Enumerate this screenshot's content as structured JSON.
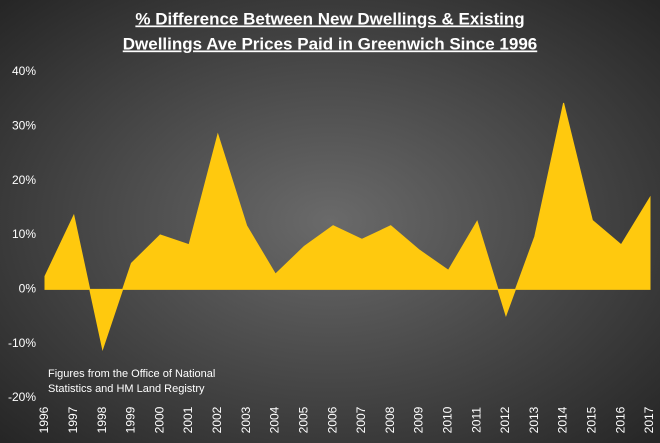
{
  "chart_data": {
    "type": "area",
    "title": [
      "% Difference Between New Dwellings & Existing",
      "Dwellings Ave Prices Paid in Greenwich Since 1996"
    ],
    "annotation": [
      "Figures from the Office of National",
      "Statistics and HM Land Registry"
    ],
    "categories": [
      "1996",
      "1997",
      "1998",
      "1999",
      "2000",
      "2001",
      "2002",
      "2003",
      "2004",
      "2005",
      "2006",
      "2007",
      "2008",
      "2009",
      "2010",
      "2011",
      "2012",
      "2013",
      "2014",
      "2015",
      "2016",
      "2017"
    ],
    "values": [
      2.4,
      13.6,
      -11,
      4.8,
      10,
      8.2,
      28.5,
      11.7,
      2.8,
      7.9,
      11.7,
      9.2,
      11.7,
      7.2,
      3.5,
      12.5,
      -4.8,
      9.7,
      34.3,
      12.7,
      8.2,
      16.9
    ],
    "color": "#ffc90e",
    "ylim": [
      -20,
      40
    ],
    "yticks": [
      {
        "value": -20,
        "label": "-20%"
      },
      {
        "value": -10,
        "label": "-10%"
      },
      {
        "value": 0,
        "label": "0%"
      },
      {
        "value": 10,
        "label": "10%"
      },
      {
        "value": 20,
        "label": "20%"
      },
      {
        "value": 30,
        "label": "30%"
      },
      {
        "value": 40,
        "label": "40%"
      }
    ]
  }
}
